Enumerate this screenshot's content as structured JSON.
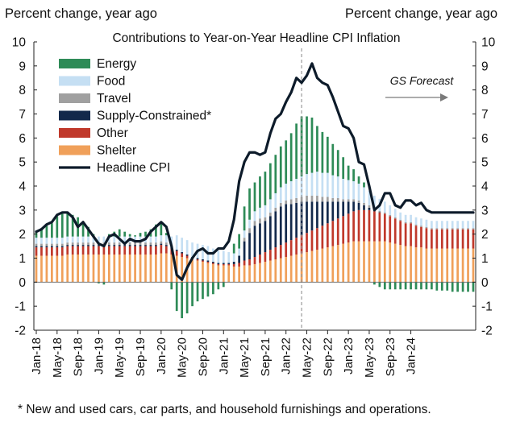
{
  "chart_data": {
    "type": "bar",
    "title": "Contributions to Year-on-Year Headline CPI Inflation",
    "ylabel_left": "Percent change, year ago",
    "ylabel_right": "Percent change, year ago",
    "ylim": [
      -2,
      10
    ],
    "yticks": [
      -2,
      -1,
      0,
      1,
      2,
      3,
      4,
      5,
      6,
      7,
      8,
      9,
      10
    ],
    "x_start": "2018-01",
    "x_tick_labels": [
      "Jan-18",
      "May-18",
      "Sep-18",
      "Jan-19",
      "May-19",
      "Sep-19",
      "Jan-20",
      "May-20",
      "Sep-20",
      "Jan-21",
      "May-21",
      "Sep-21",
      "Jan-22",
      "May-22",
      "Sep-22",
      "Jan-23",
      "May-23",
      "Sep-23",
      "Jan-24"
    ],
    "x_tick_months": [
      "2018-01",
      "2018-05",
      "2018-09",
      "2019-01",
      "2019-05",
      "2019-09",
      "2020-01",
      "2020-05",
      "2020-09",
      "2021-01",
      "2021-05",
      "2021-09",
      "2022-01",
      "2022-05",
      "2022-09",
      "2023-01",
      "2023-05",
      "2023-09",
      "2024-01"
    ],
    "forecast_start": "2022-04",
    "forecast_label": "GS Forecast",
    "legend_position": "top-left",
    "grid": false,
    "series": [
      {
        "name": "Shelter",
        "color": "#f0a05a",
        "values": [
          1.1,
          1.1,
          1.1,
          1.1,
          1.1,
          1.1,
          1.15,
          1.15,
          1.15,
          1.15,
          1.15,
          1.15,
          1.15,
          1.15,
          1.15,
          1.15,
          1.15,
          1.15,
          1.15,
          1.15,
          1.15,
          1.15,
          1.15,
          1.15,
          1.2,
          1.2,
          1.15,
          1.1,
          1.05,
          1.0,
          0.95,
          0.9,
          0.85,
          0.8,
          0.75,
          0.7,
          0.7,
          0.7,
          0.65,
          0.65,
          0.7,
          0.7,
          0.75,
          0.8,
          0.85,
          0.9,
          0.95,
          1.0,
          1.05,
          1.1,
          1.15,
          1.2,
          1.25,
          1.3,
          1.35,
          1.4,
          1.45,
          1.5,
          1.55,
          1.6,
          1.65,
          1.7,
          1.7,
          1.7,
          1.7,
          1.7,
          1.7,
          1.7,
          1.65,
          1.6,
          1.55,
          1.5,
          1.5,
          1.45,
          1.45,
          1.4,
          1.4,
          1.4,
          1.4,
          1.4,
          1.4,
          1.4,
          1.4,
          1.4,
          1.4
        ]
      },
      {
        "name": "Other",
        "color": "#c0392b",
        "values": [
          0.35,
          0.35,
          0.35,
          0.35,
          0.35,
          0.35,
          0.35,
          0.35,
          0.35,
          0.35,
          0.35,
          0.35,
          0.35,
          0.35,
          0.35,
          0.35,
          0.35,
          0.35,
          0.35,
          0.35,
          0.35,
          0.35,
          0.35,
          0.35,
          0.35,
          0.3,
          0.25,
          0.2,
          0.15,
          0.1,
          0.05,
          0.05,
          0.05,
          0.05,
          0.05,
          0.05,
          0.05,
          0.05,
          0.1,
          0.15,
          0.2,
          0.25,
          0.3,
          0.35,
          0.4,
          0.45,
          0.5,
          0.55,
          0.6,
          0.65,
          0.7,
          0.75,
          0.8,
          0.85,
          0.9,
          0.95,
          1.0,
          1.05,
          1.1,
          1.15,
          1.2,
          1.25,
          1.3,
          1.3,
          1.3,
          1.25,
          1.2,
          1.15,
          1.1,
          1.05,
          1.0,
          0.95,
          0.95,
          0.9,
          0.85,
          0.85,
          0.8,
          0.8,
          0.8,
          0.8,
          0.8,
          0.8,
          0.8,
          0.8,
          0.8
        ]
      },
      {
        "name": "Supply-Constrained*",
        "color": "#13294b",
        "values": [
          0.05,
          0.05,
          0.05,
          0.05,
          0.05,
          0.05,
          0.05,
          0.05,
          0.05,
          0.05,
          0.05,
          0.05,
          0.05,
          0.05,
          0.05,
          0.05,
          0.05,
          0.05,
          0.05,
          0.05,
          0.05,
          0.05,
          0.05,
          0.05,
          0.05,
          0.05,
          0.05,
          0.05,
          0.05,
          0.05,
          0.05,
          0.05,
          0.05,
          0.05,
          0.05,
          0.05,
          0.05,
          0.05,
          0.1,
          0.3,
          0.8,
          1.1,
          1.3,
          1.3,
          1.3,
          1.4,
          1.5,
          1.6,
          1.6,
          1.5,
          1.45,
          1.4,
          1.3,
          1.2,
          1.1,
          1.0,
          0.9,
          0.8,
          0.7,
          0.6,
          0.5,
          0.4,
          0.3,
          0.2,
          0.1,
          0.05,
          0.02,
          0,
          0,
          0,
          0,
          0,
          0,
          0,
          0,
          0,
          0,
          0,
          0,
          0,
          0,
          0,
          0,
          0,
          0
        ]
      },
      {
        "name": "Travel",
        "color": "#a0a0a0",
        "values": [
          0.1,
          0.1,
          0.1,
          0.1,
          0.1,
          0.1,
          0.1,
          0.1,
          0.1,
          0.1,
          0.1,
          0.1,
          0.1,
          0.1,
          0.1,
          0.1,
          0.1,
          0.1,
          0.1,
          0.1,
          0.1,
          0.1,
          0.1,
          0.1,
          0.1,
          0.1,
          0,
          0,
          0,
          0,
          0,
          0,
          0,
          0,
          0,
          0,
          0,
          0,
          0,
          0,
          0.15,
          0.2,
          0.2,
          0.2,
          0.15,
          0.15,
          0.15,
          0.15,
          0.15,
          0.2,
          0.2,
          0.2,
          0.25,
          0.25,
          0.25,
          0.2,
          0.2,
          0.15,
          0.15,
          0.1,
          0.1,
          0.1,
          0.1,
          0.1,
          0.1,
          0.05,
          0.05,
          0.05,
          0.05,
          0.05,
          0.05,
          0.05,
          0.05,
          0.05,
          0.05,
          0.05,
          0.05,
          0.05,
          0.05,
          0.05,
          0.05,
          0.05,
          0.05,
          0.05,
          0.05
        ]
      },
      {
        "name": "Food",
        "color": "#c5dff3",
        "values": [
          0.25,
          0.25,
          0.25,
          0.25,
          0.25,
          0.25,
          0.25,
          0.25,
          0.25,
          0.25,
          0.25,
          0.25,
          0.25,
          0.25,
          0.25,
          0.25,
          0.25,
          0.25,
          0.25,
          0.25,
          0.25,
          0.25,
          0.25,
          0.25,
          0.25,
          0.3,
          0.45,
          0.6,
          0.6,
          0.6,
          0.6,
          0.6,
          0.6,
          0.6,
          0.55,
          0.5,
          0.5,
          0.45,
          0.35,
          0.3,
          0.3,
          0.35,
          0.4,
          0.45,
          0.5,
          0.55,
          0.6,
          0.65,
          0.7,
          0.75,
          0.8,
          0.85,
          0.9,
          0.95,
          1.0,
          1.0,
          1.0,
          0.95,
          0.9,
          0.85,
          0.8,
          0.75,
          0.7,
          0.65,
          0.6,
          0.55,
          0.5,
          0.45,
          0.4,
          0.35,
          0.3,
          0.3,
          0.3,
          0.3,
          0.3,
          0.3,
          0.3,
          0.3,
          0.3,
          0.3,
          0.3,
          0.3,
          0.3,
          0.3,
          0.3
        ]
      },
      {
        "name": "Energy",
        "color": "#2e8b57",
        "values": [
          0.3,
          0.4,
          0.5,
          0.6,
          0.9,
          1.0,
          1.0,
          0.9,
          0.8,
          0.6,
          0.4,
          0.1,
          -0.05,
          -0.1,
          0.1,
          0.2,
          0.3,
          0.2,
          0.1,
          0.05,
          0.15,
          0.2,
          0.3,
          0.5,
          0.5,
          0.1,
          -0.3,
          -1.2,
          -1.5,
          -1.3,
          -1.0,
          -0.8,
          -0.7,
          -0.6,
          -0.5,
          -0.3,
          -0.2,
          0.0,
          0.4,
          0.6,
          1.0,
          1.3,
          1.2,
          1.3,
          1.4,
          1.5,
          1.6,
          1.7,
          1.8,
          2.0,
          2.3,
          2.5,
          2.4,
          2.3,
          1.9,
          1.7,
          1.5,
          1.3,
          1.1,
          0.9,
          0.6,
          0.5,
          0.3,
          0.2,
          0,
          -0.1,
          -0.2,
          -0.3,
          -0.3,
          -0.3,
          -0.3,
          -0.3,
          -0.3,
          -0.3,
          -0.3,
          -0.3,
          -0.3,
          -0.35,
          -0.35,
          -0.35,
          -0.4,
          -0.4,
          -0.4,
          -0.4,
          -0.4
        ]
      }
    ],
    "line": {
      "name": "Headline CPI",
      "color": "#0d1b2a",
      "values": [
        2.1,
        2.2,
        2.4,
        2.5,
        2.8,
        2.9,
        2.9,
        2.7,
        2.3,
        2.5,
        2.2,
        1.9,
        1.6,
        1.5,
        1.9,
        2.0,
        1.8,
        1.6,
        1.8,
        1.7,
        1.7,
        1.8,
        2.1,
        2.3,
        2.5,
        2.3,
        1.5,
        0.3,
        0.1,
        0.6,
        1.0,
        1.3,
        1.4,
        1.2,
        1.2,
        1.4,
        1.4,
        1.7,
        2.6,
        4.2,
        5.0,
        5.4,
        5.4,
        5.3,
        5.4,
        6.2,
        6.8,
        7.0,
        7.5,
        7.9,
        8.5,
        8.3,
        8.6,
        9.1,
        8.5,
        8.3,
        8.2,
        7.7,
        7.1,
        6.5,
        6.4,
        6.0,
        5.0,
        4.9,
        4.0,
        3.0,
        3.2,
        3.7,
        3.7,
        3.2,
        3.1,
        3.4,
        3.4,
        3.2,
        3.3,
        3.0,
        2.9,
        2.9,
        2.9,
        2.9,
        2.9,
        2.9,
        2.9,
        2.9,
        2.9
      ]
    }
  },
  "footnote": "* New and used cars, car parts, and household furnishings and operations."
}
